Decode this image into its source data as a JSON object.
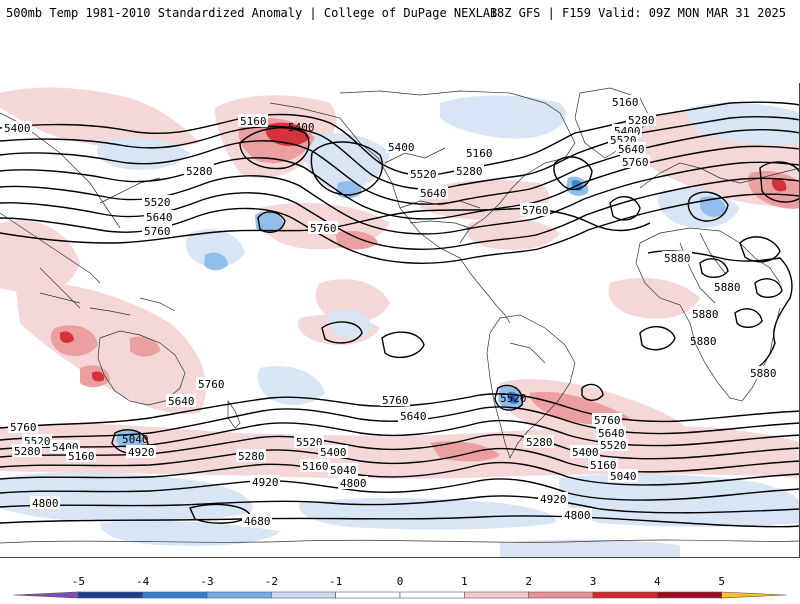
{
  "header": {
    "left": "500mb Temp 1981-2010 Standardized Anomaly | College of DuPage NEXLAB",
    "right": "18Z GFS | F159 Valid: 09Z MON MAR 31 2025"
  },
  "colorbar": {
    "ticks": [
      "-5",
      "-4",
      "-3",
      "-2",
      "-1",
      "0",
      "1",
      "2",
      "3",
      "4",
      "5"
    ],
    "colors": [
      "#7b4fb8",
      "#1f3f8f",
      "#2f7fd0",
      "#74aee6",
      "#c9dcf2",
      "#ffffff",
      "#ffffff",
      "#f3c9c9",
      "#e88f90",
      "#d4282f",
      "#9b0f1f",
      "#ffc21a"
    ]
  },
  "map": {
    "colors": {
      "warm_light": "#f6d5d5",
      "warm": "#ec9a9c",
      "warm_strong": "#d4282f",
      "cool_light": "#d5e4f5",
      "cool": "#8cbbe9",
      "cool_strong": "#2f7fd0"
    },
    "height_labels": [
      {
        "id": "h5400-nwpac",
        "text": "5400"
      },
      {
        "id": "h5160-aleut",
        "text": "5160"
      },
      {
        "id": "h5400-gulf",
        "text": "5400"
      },
      {
        "id": "h5280-npac",
        "text": "5280"
      },
      {
        "id": "h5520-npac",
        "text": "5520"
      },
      {
        "id": "h5640-npac",
        "text": "5640"
      },
      {
        "id": "h5760-npac",
        "text": "5760"
      },
      {
        "id": "h5760-cpac",
        "text": "5760"
      },
      {
        "id": "h5400-bc",
        "text": "5400"
      },
      {
        "id": "h5160-can",
        "text": "5160"
      },
      {
        "id": "h5520-us",
        "text": "5520"
      },
      {
        "id": "h5280-us",
        "text": "5280"
      },
      {
        "id": "h5640-us",
        "text": "5640"
      },
      {
        "id": "h5760-atl",
        "text": "5760"
      },
      {
        "id": "h5160-grn",
        "text": "5160"
      },
      {
        "id": "h5280-eur",
        "text": "5280"
      },
      {
        "id": "h5400-eur",
        "text": "5400"
      },
      {
        "id": "h5520-eur",
        "text": "5520"
      },
      {
        "id": "h5640-eur",
        "text": "5640"
      },
      {
        "id": "h5760-eur",
        "text": "5760"
      },
      {
        "id": "h5880-afr1",
        "text": "5880"
      },
      {
        "id": "h5880-afr2",
        "text": "5880"
      },
      {
        "id": "h5880-afr3",
        "text": "5880"
      },
      {
        "id": "h5880-afr4",
        "text": "5880"
      },
      {
        "id": "h5760-aus",
        "text": "5760"
      },
      {
        "id": "h5640-aus",
        "text": "5640"
      },
      {
        "id": "h5760-sw",
        "text": "5760"
      },
      {
        "id": "h5520-sw",
        "text": "5520"
      },
      {
        "id": "h5400-sw",
        "text": "5400"
      },
      {
        "id": "h5280-sw",
        "text": "5280"
      },
      {
        "id": "h5160-sw",
        "text": "5160"
      },
      {
        "id": "h5040-spac",
        "text": "5040"
      },
      {
        "id": "h4920-spac",
        "text": "4920"
      },
      {
        "id": "h5760-spac",
        "text": "5760"
      },
      {
        "id": "h5640-spac",
        "text": "5640"
      },
      {
        "id": "h5520-spac",
        "text": "5520"
      },
      {
        "id": "h5280-spac",
        "text": "5280"
      },
      {
        "id": "h5400-spac",
        "text": "5400"
      },
      {
        "id": "h5160-spac",
        "text": "5160"
      },
      {
        "id": "h5040-spac2",
        "text": "5040"
      },
      {
        "id": "h4920-spac2",
        "text": "4920"
      },
      {
        "id": "h4800-spac",
        "text": "4800"
      },
      {
        "id": "h4680-spac",
        "text": "4680"
      },
      {
        "id": "h4800-sw",
        "text": "4800"
      },
      {
        "id": "h5520-sam",
        "text": "5520"
      },
      {
        "id": "h5280-satl",
        "text": "5280"
      },
      {
        "id": "h5760-satl",
        "text": "5760"
      },
      {
        "id": "h5640-satl",
        "text": "5640"
      },
      {
        "id": "h5520-satl",
        "text": "5520"
      },
      {
        "id": "h5400-satl",
        "text": "5400"
      },
      {
        "id": "h5160-satl",
        "text": "5160"
      },
      {
        "id": "h5040-satl",
        "text": "5040"
      },
      {
        "id": "h4920-satl",
        "text": "4920"
      },
      {
        "id": "h4800-satl",
        "text": "4800"
      },
      {
        "id": "h5880-saf",
        "text": "5880"
      }
    ]
  }
}
